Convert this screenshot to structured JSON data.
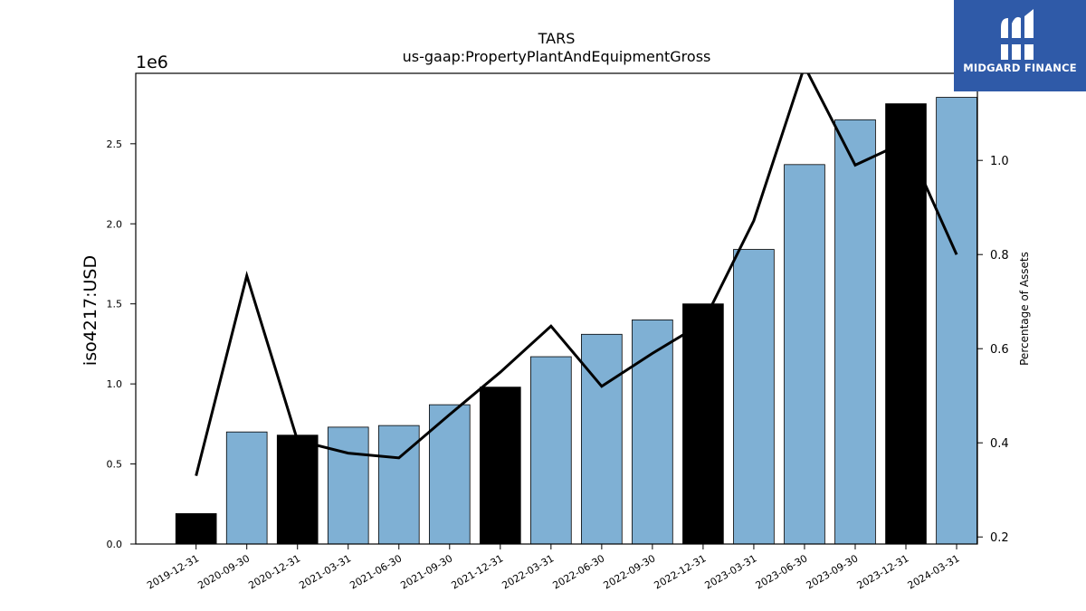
{
  "chart_data": {
    "type": "bar",
    "title": "TARS",
    "subtitle": "us-gaap:PropertyPlantAndEquipmentGross",
    "ylabel": "iso4217:USD",
    "y_offset_label": "1e6",
    "y2label": "Percentage of Assets",
    "ylim": [
      0,
      2.94
    ],
    "y2lim": [
      0.185,
      1.185
    ],
    "yticks": [
      "0.0",
      "0.5",
      "1.0",
      "1.5",
      "2.0",
      "2.5"
    ],
    "y2ticks": [
      "0.2",
      "0.4",
      "0.6",
      "0.8",
      "1.0"
    ],
    "grid": false,
    "categories": [
      "2019-12-31",
      "2020-09-30",
      "2020-12-31",
      "2021-03-31",
      "2021-06-30",
      "2021-09-30",
      "2021-12-31",
      "2022-03-31",
      "2022-06-30",
      "2022-09-30",
      "2022-12-31",
      "2023-03-31",
      "2023-06-30",
      "2023-09-30",
      "2023-12-31",
      "2024-03-31"
    ],
    "series": [
      {
        "kind": "bar",
        "axis": "left",
        "values": [
          0.19,
          0.7,
          0.68,
          0.73,
          0.74,
          0.87,
          0.98,
          1.17,
          1.31,
          1.4,
          1.5,
          1.84,
          2.37,
          2.65,
          2.75,
          2.79
        ],
        "fiscal_year_end": [
          true,
          false,
          true,
          false,
          false,
          false,
          true,
          false,
          false,
          false,
          true,
          false,
          false,
          false,
          true,
          false
        ]
      },
      {
        "kind": "line",
        "axis": "right",
        "values": [
          0.33,
          0.755,
          0.405,
          0.378,
          0.368,
          0.46,
          0.55,
          0.648,
          0.52,
          0.59,
          0.655,
          0.872,
          1.2,
          0.99,
          1.04,
          0.8
        ]
      }
    ],
    "colors": {
      "bar_quarter": "#7fb0d4",
      "bar_annual": "#000000",
      "line": "#000000"
    }
  },
  "logo": {
    "text": "MIDGARD FINANCE",
    "icon": "midgard-logo-icon",
    "bg": "#2f5aa8"
  }
}
